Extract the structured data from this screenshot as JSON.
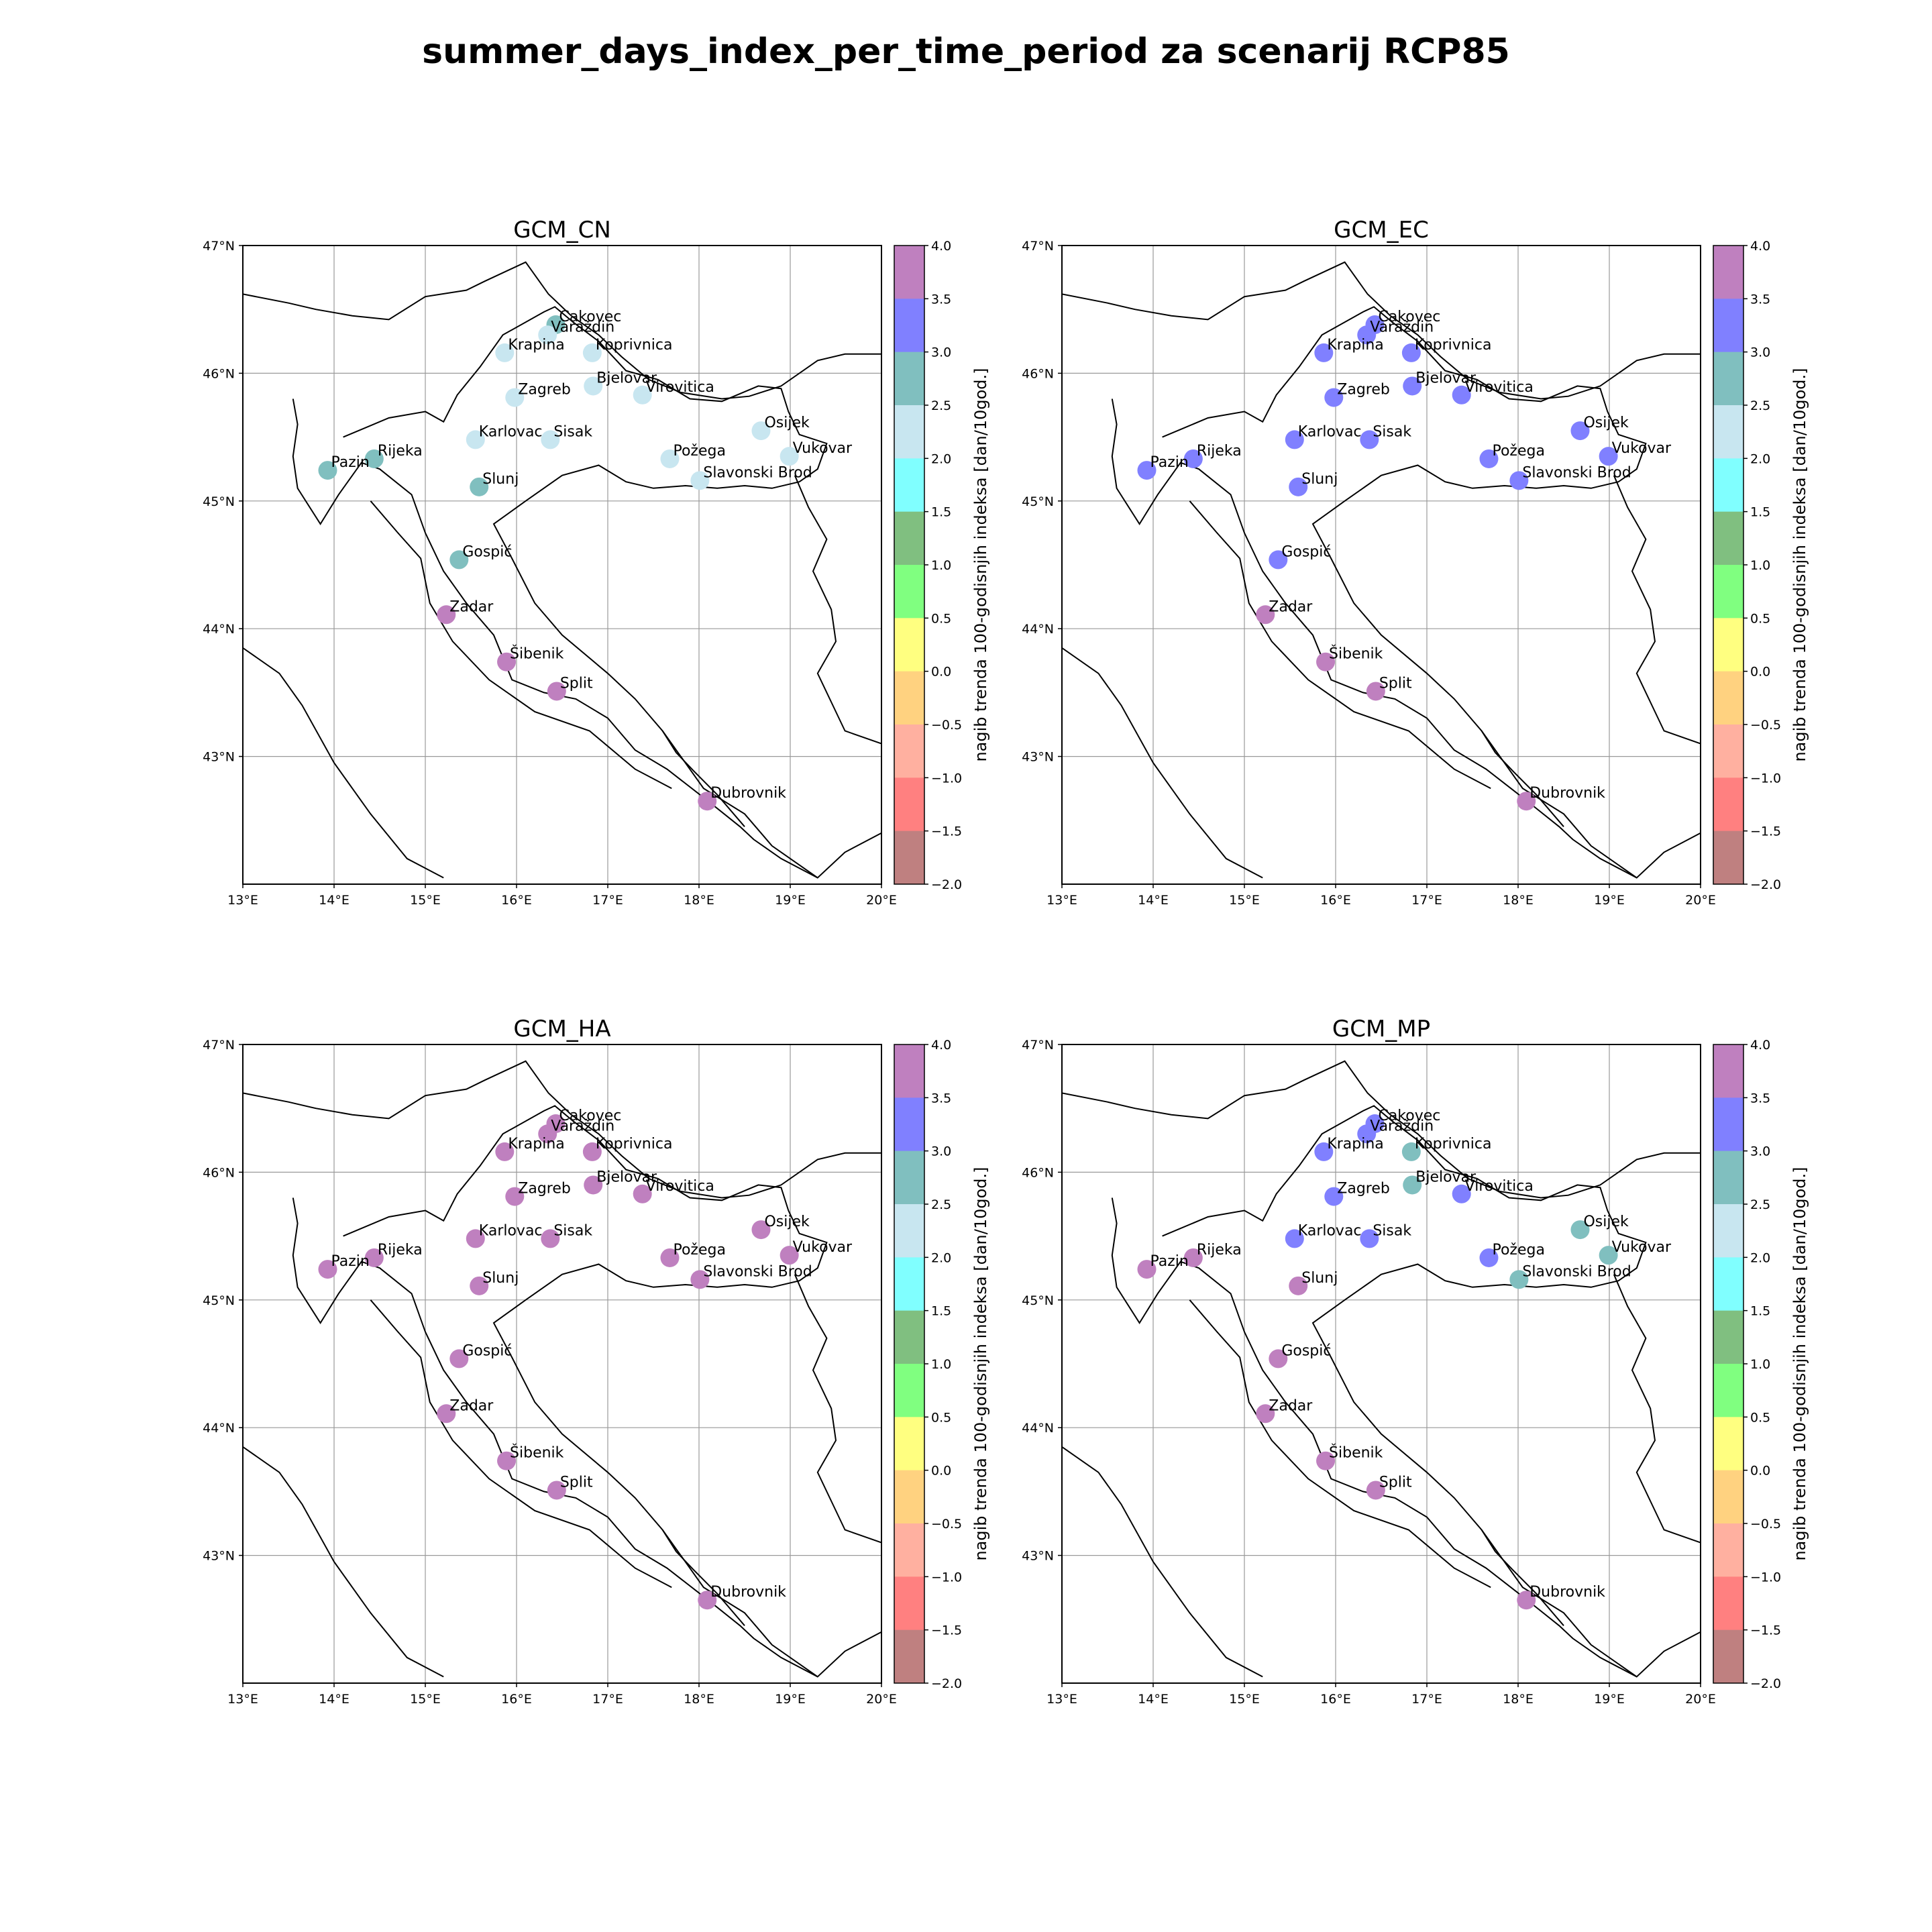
{
  "title": "summer_days_index_per_time_period za scenarij RCP85",
  "colorbar_label": "nagib trenda 100-godisnjih indeksa [dan/10god.]",
  "colorbar_ticks": [
    "4.0",
    "3.5",
    "3.0",
    "2.5",
    "2.0",
    "1.5",
    "1.0",
    "0.5",
    "0.0",
    "−0.5",
    "−1.0",
    "−1.5",
    "−2.0"
  ],
  "colorbar_colors": [
    "#bf80bf",
    "#8080ff",
    "#80bfbf",
    "#c8e6f0",
    "#80ffff",
    "#80bf80",
    "#80ff80",
    "#ffff80",
    "#ffd280",
    "#ffb0a0",
    "#ff8080",
    "#bf8080"
  ],
  "lon_ticks": [
    "13°E",
    "14°E",
    "15°E",
    "16°E",
    "17°E",
    "18°E",
    "19°E",
    "20°E"
  ],
  "lat_ticks": [
    "47°N",
    "46°N",
    "45°N",
    "44°N",
    "43°N"
  ],
  "extent": {
    "lon": [
      13,
      20
    ],
    "lat": [
      42,
      47
    ]
  },
  "stations": [
    {
      "name": "Čakovec",
      "label": "Cakovec",
      "lon": 16.43,
      "lat": 46.38
    },
    {
      "name": "Varaždin",
      "label": "Varaždin",
      "lon": 16.34,
      "lat": 46.3
    },
    {
      "name": "Krapina",
      "label": "Krapina",
      "lon": 15.87,
      "lat": 46.16
    },
    {
      "name": "Koprivnica",
      "label": "Koprivnica",
      "lon": 16.83,
      "lat": 46.16
    },
    {
      "name": "Bjelovar",
      "label": "Bjelovar",
      "lon": 16.84,
      "lat": 45.9
    },
    {
      "name": "Virovitica",
      "label": "Virovitica",
      "lon": 17.38,
      "lat": 45.83
    },
    {
      "name": "Zagreb",
      "label": "Zagreb",
      "lon": 15.98,
      "lat": 45.81
    },
    {
      "name": "Osijek",
      "label": "Osijek",
      "lon": 18.68,
      "lat": 45.55
    },
    {
      "name": "Karlovac",
      "label": "Karlovac",
      "lon": 15.55,
      "lat": 45.48
    },
    {
      "name": "Sisak",
      "label": "Sisak",
      "lon": 16.37,
      "lat": 45.48
    },
    {
      "name": "Vukovar",
      "label": "Vukovar",
      "lon": 18.99,
      "lat": 45.35
    },
    {
      "name": "Požega",
      "label": "Požega",
      "lon": 17.68,
      "lat": 45.33
    },
    {
      "name": "Rijeka",
      "label": "Rijeka",
      "lon": 14.44,
      "lat": 45.33
    },
    {
      "name": "Pazin",
      "label": "Pazin",
      "lon": 13.93,
      "lat": 45.24
    },
    {
      "name": "Slavonski Brod",
      "label": "Slavonski Brod",
      "lon": 18.01,
      "lat": 45.16
    },
    {
      "name": "Slunj",
      "label": "Slunj",
      "lon": 15.59,
      "lat": 45.11
    },
    {
      "name": "Gospić",
      "label": "Gospić",
      "lon": 15.37,
      "lat": 44.54
    },
    {
      "name": "Zadar",
      "label": "Zadar",
      "lon": 15.23,
      "lat": 44.11
    },
    {
      "name": "Šibenik",
      "label": "Šibenik",
      "lon": 15.89,
      "lat": 43.74
    },
    {
      "name": "Split",
      "label": "Split",
      "lon": 16.44,
      "lat": 43.51
    },
    {
      "name": "Dubrovnik",
      "label": "Dubrovnik",
      "lon": 18.09,
      "lat": 42.65
    }
  ],
  "panels": [
    {
      "title": "GCM_CN",
      "classes": {
        "Čakovec": "#80bfbf",
        "Varaždin": "#c8e6f0",
        "Krapina": "#c8e6f0",
        "Koprivnica": "#c8e6f0",
        "Bjelovar": "#c8e6f0",
        "Virovitica": "#c8e6f0",
        "Zagreb": "#c8e6f0",
        "Osijek": "#c8e6f0",
        "Karlovac": "#c8e6f0",
        "Sisak": "#c8e6f0",
        "Vukovar": "#c8e6f0",
        "Požega": "#c8e6f0",
        "Rijeka": "#80bfbf",
        "Pazin": "#80bfbf",
        "Slavonski Brod": "#c8e6f0",
        "Slunj": "#80bfbf",
        "Gospić": "#80bfbf",
        "Zadar": "#bf80bf",
        "Šibenik": "#bf80bf",
        "Split": "#bf80bf",
        "Dubrovnik": "#bf80bf"
      }
    },
    {
      "title": "GCM_EC",
      "classes": {
        "Čakovec": "#8080ff",
        "Varaždin": "#8080ff",
        "Krapina": "#8080ff",
        "Koprivnica": "#8080ff",
        "Bjelovar": "#8080ff",
        "Virovitica": "#8080ff",
        "Zagreb": "#8080ff",
        "Osijek": "#8080ff",
        "Karlovac": "#8080ff",
        "Sisak": "#8080ff",
        "Vukovar": "#8080ff",
        "Požega": "#8080ff",
        "Rijeka": "#8080ff",
        "Pazin": "#8080ff",
        "Slavonski Brod": "#8080ff",
        "Slunj": "#8080ff",
        "Gospić": "#8080ff",
        "Zadar": "#bf80bf",
        "Šibenik": "#bf80bf",
        "Split": "#bf80bf",
        "Dubrovnik": "#bf80bf"
      }
    },
    {
      "title": "GCM_HA",
      "classes": {
        "Čakovec": "#bf80bf",
        "Varaždin": "#bf80bf",
        "Krapina": "#bf80bf",
        "Koprivnica": "#bf80bf",
        "Bjelovar": "#bf80bf",
        "Virovitica": "#bf80bf",
        "Zagreb": "#bf80bf",
        "Osijek": "#bf80bf",
        "Karlovac": "#bf80bf",
        "Sisak": "#bf80bf",
        "Vukovar": "#bf80bf",
        "Požega": "#bf80bf",
        "Rijeka": "#bf80bf",
        "Pazin": "#bf80bf",
        "Slavonski Brod": "#bf80bf",
        "Slunj": "#bf80bf",
        "Gospić": "#bf80bf",
        "Zadar": "#bf80bf",
        "Šibenik": "#bf80bf",
        "Split": "#bf80bf",
        "Dubrovnik": "#bf80bf"
      }
    },
    {
      "title": "GCM_MP",
      "classes": {
        "Čakovec": "#8080ff",
        "Varaždin": "#8080ff",
        "Krapina": "#8080ff",
        "Koprivnica": "#80bfbf",
        "Bjelovar": "#80bfbf",
        "Virovitica": "#8080ff",
        "Zagreb": "#8080ff",
        "Osijek": "#80bfbf",
        "Karlovac": "#8080ff",
        "Sisak": "#8080ff",
        "Vukovar": "#80bfbf",
        "Požega": "#8080ff",
        "Rijeka": "#bf80bf",
        "Pazin": "#bf80bf",
        "Slavonski Brod": "#80bfbf",
        "Slunj": "#bf80bf",
        "Gospić": "#bf80bf",
        "Zadar": "#bf80bf",
        "Šibenik": "#bf80bf",
        "Split": "#bf80bf",
        "Dubrovnik": "#bf80bf"
      }
    }
  ]
}
